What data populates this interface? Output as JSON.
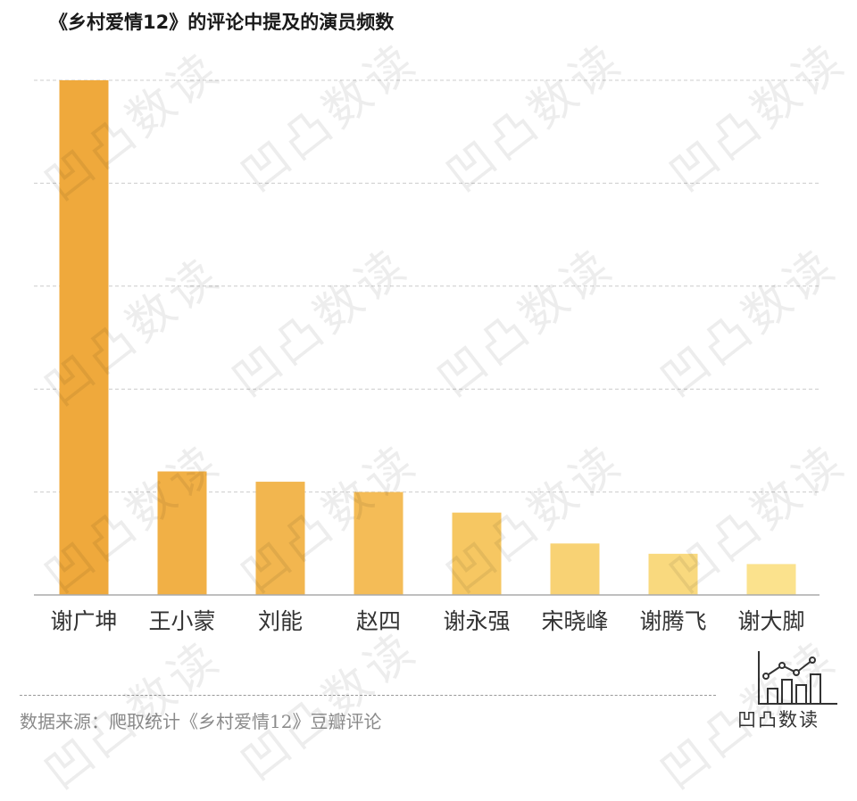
{
  "title": "《乡村爱情12》的评论中提及的演员频数",
  "source": "数据来源：爬取统计《乡村爱情12》豆瓣评论",
  "brand": {
    "name": "凹凸数读",
    "icon": "bar-line-chart-logo-icon"
  },
  "watermark": "凹凸数读",
  "colors": {
    "bars": [
      "#EFA93C",
      "#F1B046",
      "#F2B64F",
      "#F4BC57",
      "#F6C762",
      "#F8D274",
      "#F9D97E",
      "#FBE28D"
    ],
    "grid": "#cccccc",
    "axis": "#aaaaaa",
    "label": "#333333"
  },
  "chart_data": {
    "type": "bar",
    "categories": [
      "谢广坤",
      "王小蒙",
      "刘能",
      "赵四",
      "谢永强",
      "宋晓峰",
      "谢腾飞",
      "谢大脚"
    ],
    "values": [
      100,
      24,
      22,
      20,
      16,
      10,
      8,
      6
    ],
    "ylim": [
      0,
      100
    ],
    "grid": true,
    "y_ticks_shown": false
  }
}
